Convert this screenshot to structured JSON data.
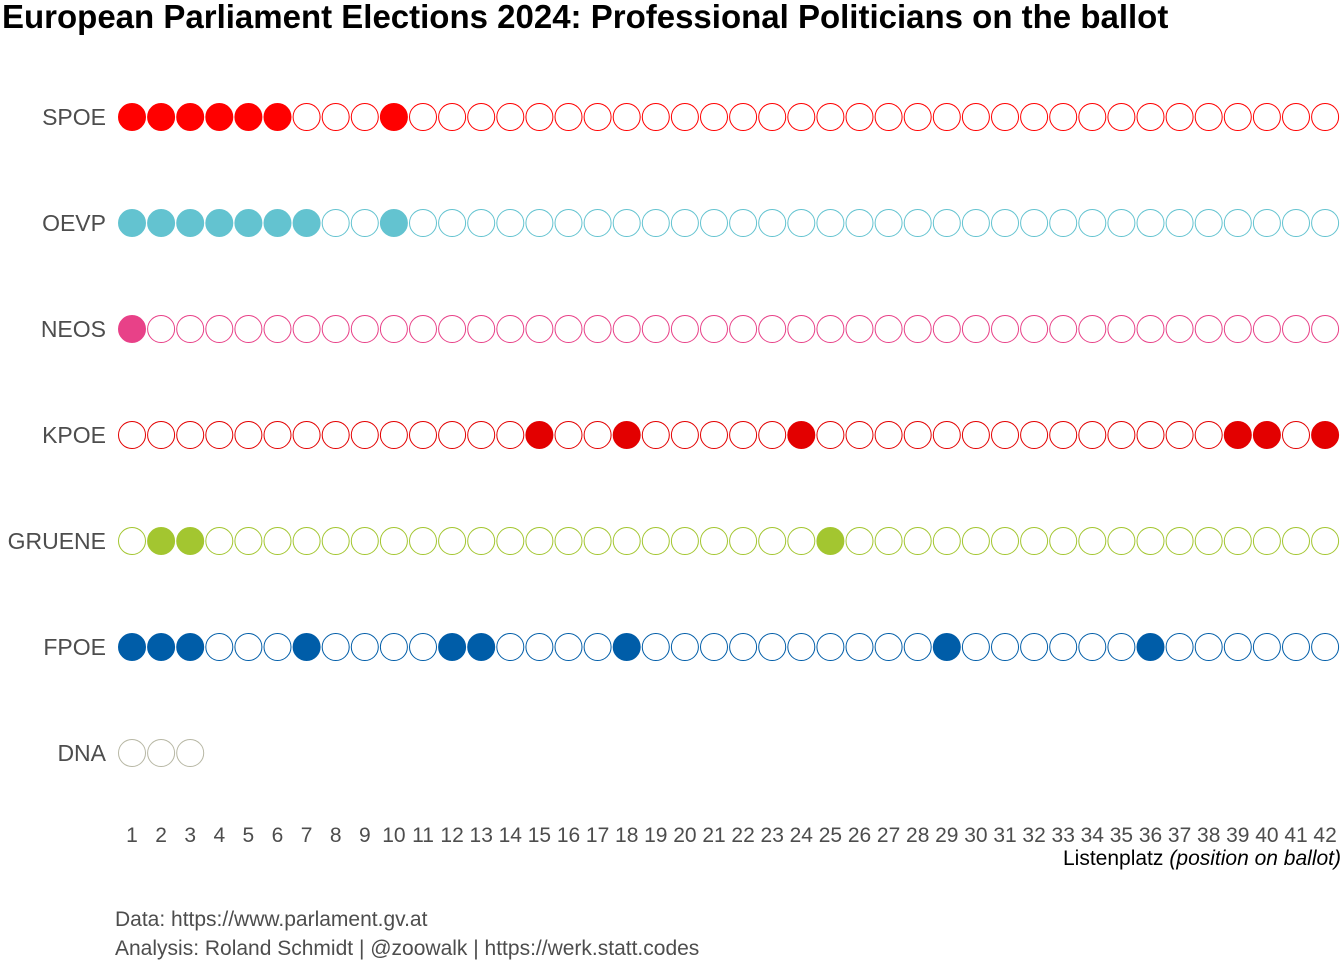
{
  "chart_data": {
    "type": "scatter",
    "title": "European Parliament Elections 2024: Professional Politicians on the ballot",
    "xlabel": "Listenplatz",
    "xlabel_note": "(position on ballot)",
    "x_ticks": [
      1,
      2,
      3,
      4,
      5,
      6,
      7,
      8,
      9,
      10,
      11,
      12,
      13,
      14,
      15,
      16,
      17,
      18,
      19,
      20,
      21,
      22,
      23,
      24,
      25,
      26,
      27,
      28,
      29,
      30,
      31,
      32,
      33,
      34,
      35,
      36,
      37,
      38,
      39,
      40,
      41,
      42
    ],
    "grid": false,
    "legend": "none",
    "parties": [
      {
        "name": "SPOE",
        "color": "#ff0000",
        "positions": 42,
        "professional": [
          1,
          2,
          3,
          4,
          5,
          6,
          10
        ]
      },
      {
        "name": "OEVP",
        "color": "#63c3d0",
        "positions": 42,
        "professional": [
          1,
          2,
          3,
          4,
          5,
          6,
          7,
          10
        ]
      },
      {
        "name": "NEOS",
        "color": "#e84188",
        "positions": 42,
        "professional": [
          1
        ]
      },
      {
        "name": "KPOE",
        "color": "#e30000",
        "positions": 42,
        "professional": [
          15,
          18,
          24,
          39,
          40,
          42
        ]
      },
      {
        "name": "GRUENE",
        "color": "#a3c630",
        "positions": 42,
        "professional": [
          2,
          3,
          25
        ]
      },
      {
        "name": "FPOE",
        "color": "#005da8",
        "positions": 42,
        "professional": [
          1,
          2,
          3,
          7,
          12,
          13,
          18,
          29,
          36
        ]
      },
      {
        "name": "DNA",
        "color": "#b7b7a4",
        "positions": 3,
        "professional": []
      }
    ]
  },
  "caption": {
    "line1": "Data: https://www.parlament.gv.at",
    "line2": "Analysis: Roland Schmidt | @zoowalk | https://werk.statt.codes"
  }
}
